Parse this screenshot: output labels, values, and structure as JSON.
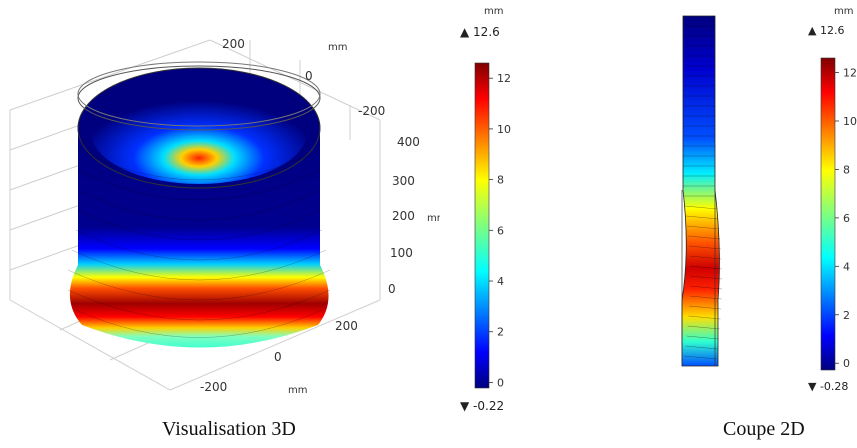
{
  "chart_data": [
    {
      "type": "heatmap",
      "title": "Visualisation 3D",
      "axes": {
        "x_ticks": [
          "200",
          "0",
          "-200"
        ],
        "y_ticks": [
          "200",
          "0",
          "-200"
        ],
        "z_ticks": [
          "400",
          "300",
          "200",
          "100",
          "0"
        ],
        "x_unit": "mm",
        "y_unit": "mm",
        "z_unit": "mm"
      },
      "colorbar": {
        "unit": "mm",
        "max": "12.6",
        "min": "-0.22",
        "ticks": [
          "12",
          "10",
          "8",
          "6",
          "4",
          "2",
          "0"
        ],
        "range": [
          -0.22,
          12.6
        ]
      }
    },
    {
      "type": "heatmap",
      "title": "Coupe 2D",
      "colorbar": {
        "unit": "mm",
        "max": "12.6",
        "min": "-0.28",
        "ticks": [
          "12",
          "10",
          "8",
          "6",
          "4",
          "2",
          "0"
        ],
        "range": [
          -0.28,
          12.6
        ]
      }
    }
  ],
  "captions": {
    "left": "Visualisation 3D",
    "right": "Coupe 2D"
  },
  "extremes": {
    "left_max": "▲ 12.6",
    "left_min": "▼ -0.22",
    "right_max": "▲ 12.6",
    "right_min": "▼ -0.28"
  },
  "colors": {
    "jet": [
      "#00007f",
      "#0000ff",
      "#007fff",
      "#00ffff",
      "#7fff7f",
      "#ffff00",
      "#ff7f00",
      "#ff0000",
      "#7f0000"
    ]
  }
}
